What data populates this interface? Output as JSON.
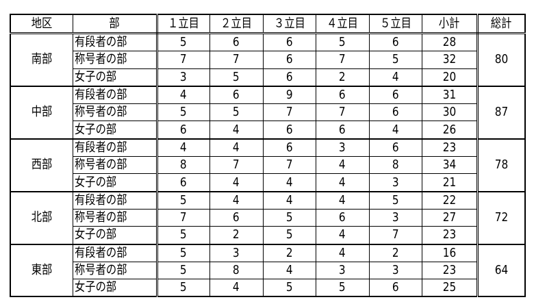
{
  "headers": [
    "地区",
    "部",
    "１立目",
    "２立目",
    "３立目",
    "４立目",
    "５立目",
    "小計",
    "総計"
  ],
  "regions": [
    {
      "name": "南部",
      "total": "80",
      "rows": [
        {
          "division": "有段者の部",
          "scores": [
            "5",
            "6",
            "6",
            "5",
            "6"
          ],
          "subtotal": "28"
        },
        {
          "division": "称号者の部",
          "scores": [
            "7",
            "7",
            "6",
            "7",
            "5"
          ],
          "subtotal": "32"
        },
        {
          "division": "女子の部",
          "scores": [
            "3",
            "5",
            "6",
            "2",
            "4"
          ],
          "subtotal": "20"
        }
      ]
    },
    {
      "name": "中部",
      "total": "87",
      "rows": [
        {
          "division": "有段者の部",
          "scores": [
            "4",
            "6",
            "9",
            "6",
            "6"
          ],
          "subtotal": "31"
        },
        {
          "division": "称号者の部",
          "scores": [
            "5",
            "5",
            "7",
            "7",
            "6"
          ],
          "subtotal": "30"
        },
        {
          "division": "女子の部",
          "scores": [
            "6",
            "4",
            "6",
            "6",
            "4"
          ],
          "subtotal": "26"
        }
      ]
    },
    {
      "name": "西部",
      "total": "78",
      "rows": [
        {
          "division": "有段者の部",
          "scores": [
            "4",
            "4",
            "6",
            "3",
            "6"
          ],
          "subtotal": "23"
        },
        {
          "division": "称号者の部",
          "scores": [
            "8",
            "7",
            "7",
            "4",
            "8"
          ],
          "subtotal": "34"
        },
        {
          "division": "女子の部",
          "scores": [
            "6",
            "4",
            "4",
            "4",
            "3"
          ],
          "subtotal": "21"
        }
      ]
    },
    {
      "name": "北部",
      "total": "72",
      "rows": [
        {
          "division": "有段者の部",
          "scores": [
            "5",
            "4",
            "4",
            "4",
            "5"
          ],
          "subtotal": "22"
        },
        {
          "division": "称号者の部",
          "scores": [
            "7",
            "6",
            "5",
            "6",
            "3"
          ],
          "subtotal": "27"
        },
        {
          "division": "女子の部",
          "scores": [
            "5",
            "2",
            "5",
            "4",
            "7"
          ],
          "subtotal": "23"
        }
      ]
    },
    {
      "name": "東部",
      "total": "64",
      "rows": [
        {
          "division": "有段者の部",
          "scores": [
            "5",
            "3",
            "2",
            "4",
            "2"
          ],
          "subtotal": "16"
        },
        {
          "division": "称号者の部",
          "scores": [
            "5",
            "8",
            "4",
            "3",
            "3"
          ],
          "subtotal": "23"
        },
        {
          "division": "女子の部",
          "scores": [
            "5",
            "4",
            "5",
            "5",
            "6"
          ],
          "subtotal": "25"
        }
      ]
    }
  ]
}
